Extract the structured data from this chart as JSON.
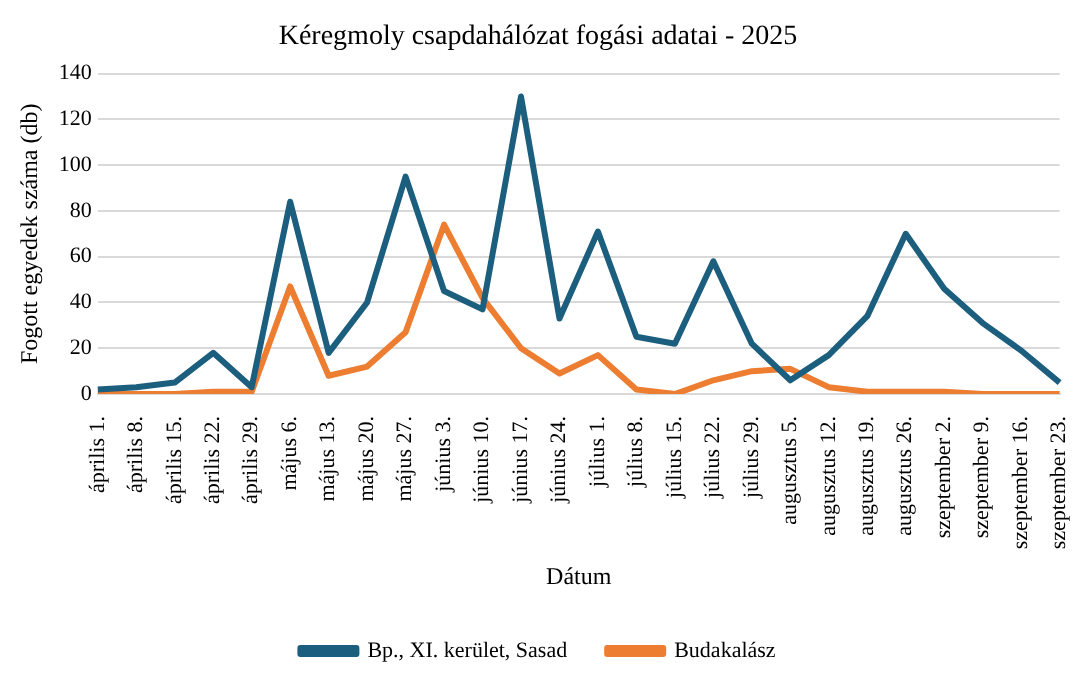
{
  "chart_data": {
    "type": "line",
    "title": "Kéregmoly csapdahálózat fogási adatai - 2025",
    "xlabel": "Dátum",
    "ylabel": "Fogott egyedek száma (db)",
    "categories": [
      "április 1.",
      "április 8.",
      "április 15.",
      "április 22.",
      "április 29.",
      "május 6.",
      "május 13.",
      "május 20.",
      "május 27.",
      "június 3.",
      "június 10.",
      "június 17.",
      "június 24.",
      "július 1.",
      "július 8.",
      "július 15.",
      "július 22.",
      "július 29.",
      "augusztus 5.",
      "augusztus 12.",
      "augusztus 19.",
      "augusztus 26.",
      "szeptember 2.",
      "szeptember 9.",
      "szeptember 16.",
      "szeptember 23."
    ],
    "series": [
      {
        "name": "Bp., XI. kerület, Sasad",
        "color": "#1b5e7e",
        "values": [
          2,
          3,
          5,
          18,
          3,
          84,
          18,
          40,
          95,
          45,
          37,
          130,
          33,
          71,
          25,
          22,
          58,
          22,
          6,
          17,
          34,
          70,
          46,
          31,
          19,
          5
        ]
      },
      {
        "name": "Budakalász",
        "color": "#ed7d31",
        "values": [
          0,
          0,
          0,
          1,
          1,
          47,
          8,
          12,
          27,
          74,
          42,
          20,
          9,
          17,
          2,
          0,
          6,
          10,
          11,
          3,
          1,
          1,
          1,
          0,
          0,
          0
        ]
      }
    ],
    "ylim": [
      0,
      140
    ],
    "yticks": [
      0,
      20,
      40,
      60,
      80,
      100,
      120,
      140
    ],
    "grid": "y",
    "legend": "bottom",
    "marker": "none",
    "line_style": "solid"
  }
}
